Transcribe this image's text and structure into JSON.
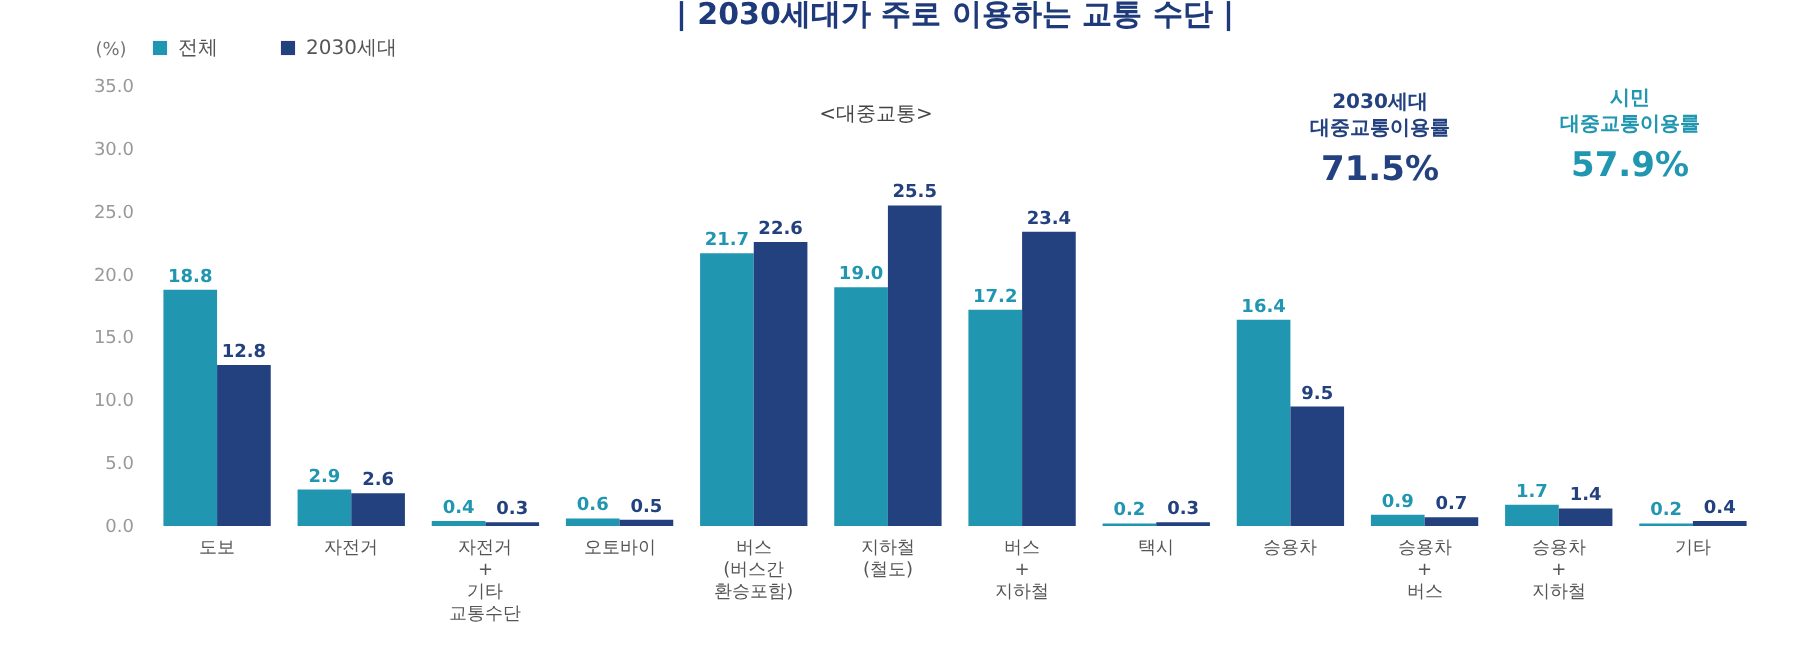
{
  "chart_data": {
    "type": "bar",
    "title": "|  2030세대가 주로 이용하는 교통 수단  |",
    "ylabel": "(%)",
    "categories": [
      "도보",
      "자전거",
      "자전거\n+\n기타\n교통수단",
      "오토바이",
      "버스\n(버스간\n환승포함)",
      "지하철\n(철도)",
      "버스\n+\n지하철",
      "택시",
      "승용차",
      "승용차\n+\n버스",
      "승용차\n+\n지하철",
      "기타"
    ],
    "series": [
      {
        "name": "전체",
        "color": "#2196b0",
        "values": [
          18.8,
          2.9,
          0.4,
          0.6,
          21.7,
          19.0,
          17.2,
          0.2,
          16.4,
          0.9,
          1.7,
          0.2
        ],
        "value_labels": [
          "18.8",
          "2.9",
          "0.4",
          "0.6",
          "21.7",
          "19.0",
          "17.2",
          "0.2",
          "16.4",
          "0.9",
          "1.7",
          "0.2"
        ]
      },
      {
        "name": "2030세대",
        "color": "#24417f",
        "values": [
          12.8,
          2.6,
          0.3,
          0.5,
          22.6,
          25.5,
          23.4,
          0.3,
          9.5,
          0.7,
          1.4,
          0.4
        ],
        "value_labels": [
          "12.8",
          "2.6",
          "0.3",
          "0.5",
          "22.6",
          "25.5",
          "23.4",
          "0.3",
          "9.5",
          "0.7",
          "1.4",
          "0.4"
        ]
      }
    ],
    "ylim": [
      0,
      35
    ],
    "yticks": [
      {
        "value": 0,
        "label": "0.0"
      },
      {
        "value": 5,
        "label": "5.0"
      },
      {
        "value": 10,
        "label": "10.0"
      },
      {
        "value": 15,
        "label": "15.0"
      },
      {
        "value": 20,
        "label": "20.0"
      },
      {
        "value": 25,
        "label": "25.0"
      },
      {
        "value": 30,
        "label": "30.0"
      },
      {
        "value": 35,
        "label": "35.0"
      }
    ],
    "legend": "top left",
    "grid": false,
    "annotations": [
      "<대중교통>",
      "2030세대\n대중교통이용률\n71.5%",
      "시민\n대중교통이용률\n57.9%"
    ]
  }
}
